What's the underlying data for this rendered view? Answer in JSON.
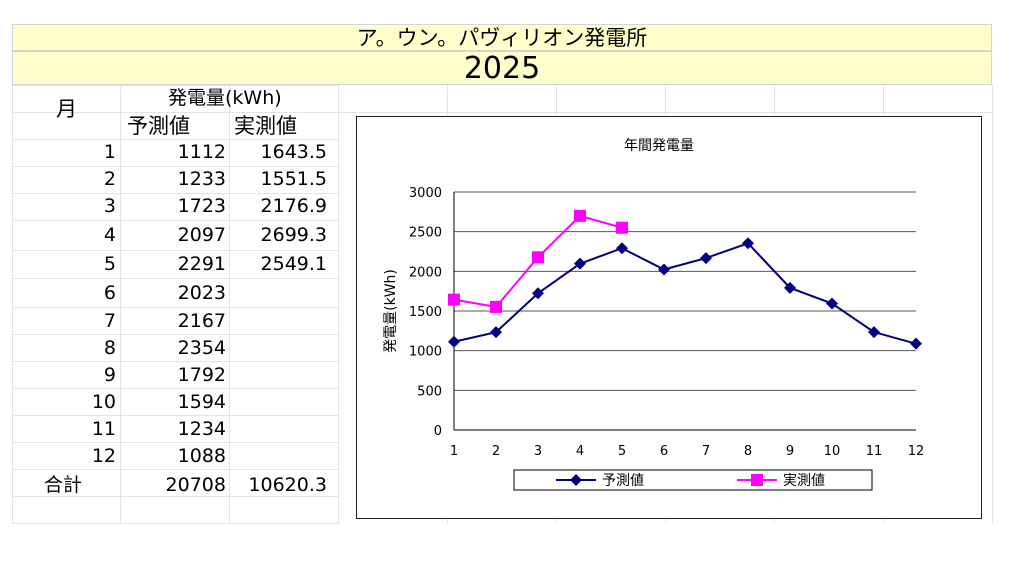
{
  "header": {
    "title": "ア。ウン。パヴィリオン発電所",
    "year": "2025"
  },
  "table": {
    "month_header": "月",
    "power_header": "発電量(kWh)",
    "col_forecast": "予測値",
    "col_actual": "実測値",
    "rows": [
      {
        "month": "1",
        "forecast": "1112",
        "actual": "1643.5"
      },
      {
        "month": "2",
        "forecast": "1233",
        "actual": "1551.5"
      },
      {
        "month": "3",
        "forecast": "1723",
        "actual": "2176.9"
      },
      {
        "month": "4",
        "forecast": "2097",
        "actual": "2699.3"
      },
      {
        "month": "5",
        "forecast": "2291",
        "actual": "2549.1"
      },
      {
        "month": "6",
        "forecast": "2023",
        "actual": ""
      },
      {
        "month": "7",
        "forecast": "2167",
        "actual": ""
      },
      {
        "month": "8",
        "forecast": "2354",
        "actual": ""
      },
      {
        "month": "9",
        "forecast": "1792",
        "actual": ""
      },
      {
        "month": "10",
        "forecast": "1594",
        "actual": ""
      },
      {
        "month": "11",
        "forecast": "1234",
        "actual": ""
      },
      {
        "month": "12",
        "forecast": "1088",
        "actual": ""
      }
    ],
    "total_label": "合計",
    "total_forecast": "20708",
    "total_actual": "10620.3"
  },
  "chart_data": {
    "type": "line",
    "title": "年間発電量",
    "xlabel": "",
    "ylabel": "発電量(kWh)",
    "categories": [
      "1",
      "2",
      "3",
      "4",
      "5",
      "6",
      "7",
      "8",
      "9",
      "10",
      "11",
      "12"
    ],
    "y_ticks": [
      0,
      500,
      1000,
      1500,
      2000,
      2500,
      3000
    ],
    "ylim": [
      0,
      3000
    ],
    "grid": true,
    "legend_position": "bottom",
    "series": [
      {
        "name": "予測値",
        "color": "#000080",
        "marker": "diamond",
        "values": [
          1112,
          1233,
          1723,
          2097,
          2291,
          2023,
          2167,
          2354,
          1792,
          1594,
          1234,
          1088
        ]
      },
      {
        "name": "実測値",
        "color": "#ff00ff",
        "marker": "square",
        "values": [
          1643.5,
          1551.5,
          2176.9,
          2699.3,
          2549.1,
          null,
          null,
          null,
          null,
          null,
          null,
          null
        ]
      }
    ]
  }
}
